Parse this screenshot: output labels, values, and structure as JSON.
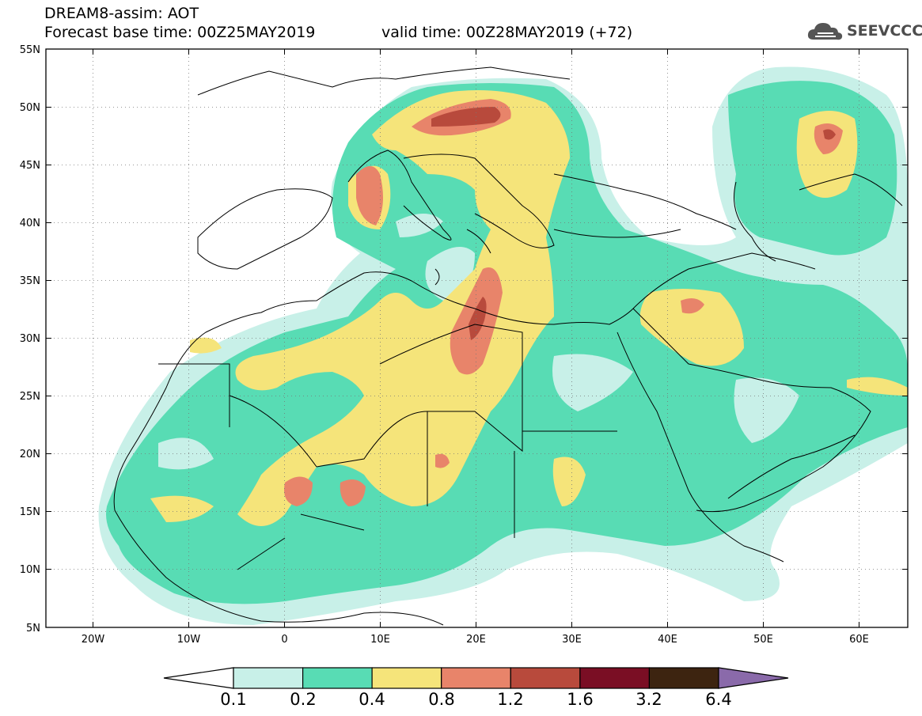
{
  "header": {
    "model_var": "DREAM8-assim: AOT",
    "base_time": "Forecast base time: 00Z25MAY2019",
    "valid_time": "valid time: 00Z28MAY2019 (+72)"
  },
  "logo": {
    "text": "SEEVCCC",
    "icon": "cloud-icon"
  },
  "axes": {
    "lat_labels": [
      "55N",
      "50N",
      "45N",
      "40N",
      "35N",
      "30N",
      "25N",
      "20N",
      "15N",
      "10N",
      "5N"
    ],
    "lon_labels": [
      "20W",
      "10W",
      "0",
      "10E",
      "20E",
      "30E",
      "40E",
      "50E",
      "60E"
    ],
    "lon_range": [
      -25,
      65
    ],
    "lat_range": [
      5,
      55
    ]
  },
  "colorbar": {
    "colors": [
      "#c8f0e8",
      "#58dcb4",
      "#f5e47a",
      "#e8846a",
      "#b84a3c",
      "#7a0e24",
      "#3d2410",
      "#8a6aaa"
    ],
    "levels": [
      "0.1",
      "0.2",
      "0.4",
      "0.8",
      "1.2",
      "1.6",
      "3.2",
      "6.4"
    ]
  }
}
